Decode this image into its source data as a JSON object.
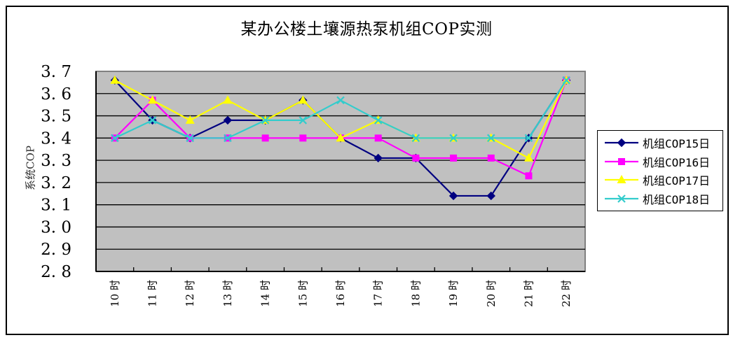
{
  "chart_data": {
    "type": "line",
    "title": "某办公楼土壤源热泵机组COP实测",
    "xlabel": "",
    "ylabel": "系统COP",
    "ylim": [
      2.8,
      3.7
    ],
    "yticks": [
      "3.7",
      "3.6",
      "3.5",
      "3.4",
      "3.3",
      "3.2",
      "3.1",
      "3.0",
      "2.9",
      "2.8"
    ],
    "ytick_values": [
      3.7,
      3.6,
      3.5,
      3.4,
      3.3,
      3.2,
      3.1,
      3.0,
      2.9,
      2.8
    ],
    "grid": true,
    "legend_position": "right",
    "categories": [
      "10时",
      "11时",
      "12时",
      "13时",
      "14时",
      "15时",
      "16时",
      "17时",
      "18时",
      "19时",
      "20时",
      "21时",
      "22时"
    ],
    "series": [
      {
        "name": "机组COP15日",
        "color": "#000080",
        "marker": "diamond",
        "values": [
          3.66,
          3.48,
          3.4,
          3.48,
          3.48,
          3.57,
          3.4,
          3.31,
          3.31,
          3.14,
          3.14,
          3.4,
          3.66
        ]
      },
      {
        "name": "机组COP16日",
        "color": "#FF00FF",
        "marker": "square",
        "values": [
          3.4,
          3.57,
          3.4,
          3.4,
          3.4,
          3.4,
          3.4,
          3.4,
          3.31,
          3.31,
          3.31,
          3.23,
          3.66
        ]
      },
      {
        "name": "机组COP17日",
        "color": "#FFFF00",
        "marker": "triangle",
        "values": [
          3.66,
          3.57,
          3.48,
          3.57,
          3.48,
          3.57,
          3.4,
          3.48,
          3.4,
          3.4,
          3.4,
          3.31,
          3.66
        ]
      },
      {
        "name": "机组COP18日",
        "color": "#33CCCC",
        "marker": "x",
        "values": [
          3.4,
          3.48,
          3.4,
          3.4,
          3.48,
          3.48,
          3.57,
          3.48,
          3.4,
          3.4,
          3.4,
          3.4,
          3.66
        ]
      }
    ]
  },
  "colors": {
    "plot_background": "#C0C0C0",
    "plot_border": "#808080",
    "gridline": "#000000",
    "frame": "#000000"
  }
}
